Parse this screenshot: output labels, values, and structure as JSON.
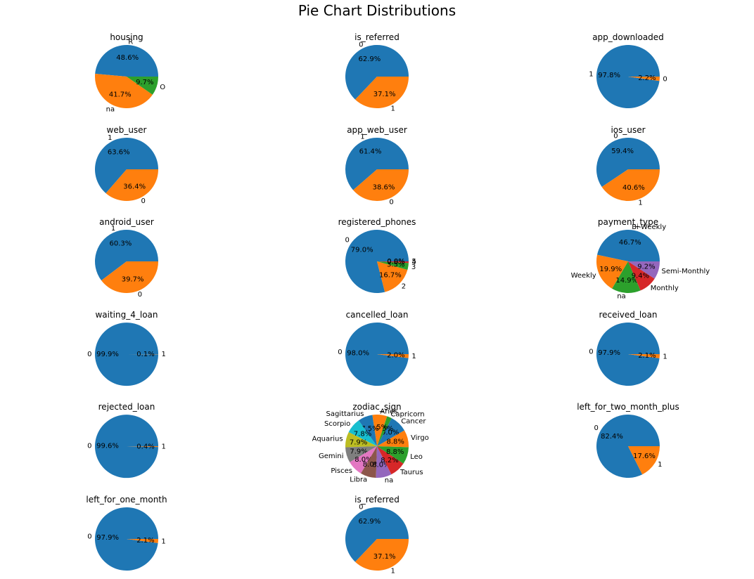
{
  "figure": {
    "title": "Pie Chart Distributions"
  },
  "chart_data": [
    {
      "type": "pie",
      "title": "housing",
      "labels": [
        "R",
        "na",
        "O"
      ],
      "values": [
        48.6,
        41.7,
        9.7
      ],
      "colors": [
        "#1f77b4",
        "#ff7f0e",
        "#2ca02c"
      ],
      "start_angle": 0
    },
    {
      "type": "pie",
      "title": "is_referred",
      "labels": [
        "0",
        "1"
      ],
      "values": [
        62.9,
        37.1
      ],
      "colors": [
        "#1f77b4",
        "#ff7f0e"
      ],
      "start_angle": 0
    },
    {
      "type": "pie",
      "title": "app_downloaded",
      "labels": [
        "1",
        "0"
      ],
      "values": [
        97.8,
        2.2
      ],
      "colors": [
        "#1f77b4",
        "#ff7f0e"
      ],
      "start_angle": 0
    },
    {
      "type": "pie",
      "title": "web_user",
      "labels": [
        "1",
        "0"
      ],
      "values": [
        63.6,
        36.4
      ],
      "colors": [
        "#1f77b4",
        "#ff7f0e"
      ],
      "start_angle": 0
    },
    {
      "type": "pie",
      "title": "app_web_user",
      "labels": [
        "1",
        "0"
      ],
      "values": [
        61.4,
        38.6
      ],
      "colors": [
        "#1f77b4",
        "#ff7f0e"
      ],
      "start_angle": 0
    },
    {
      "type": "pie",
      "title": "ios_user",
      "labels": [
        "0",
        "1"
      ],
      "values": [
        59.4,
        40.6
      ],
      "colors": [
        "#1f77b4",
        "#ff7f0e"
      ],
      "start_angle": 0
    },
    {
      "type": "pie",
      "title": "android_user",
      "labels": [
        "1",
        "0"
      ],
      "values": [
        60.3,
        39.7
      ],
      "colors": [
        "#1f77b4",
        "#ff7f0e"
      ],
      "start_angle": 0
    },
    {
      "type": "pie",
      "title": "registered_phones",
      "labels": [
        "0",
        "2",
        "3",
        "4",
        "5"
      ],
      "values": [
        79.0,
        16.7,
        3.5,
        0.8,
        0.0
      ],
      "colors": [
        "#1f77b4",
        "#ff7f0e",
        "#2ca02c",
        "#d62728",
        "#9467bd"
      ],
      "start_angle": 0
    },
    {
      "type": "pie",
      "title": "payment_type",
      "labels": [
        "Bi-Weekly",
        "Weekly",
        "na",
        "Monthly",
        "Semi-Monthly"
      ],
      "values": [
        46.7,
        19.9,
        14.9,
        9.4,
        9.2
      ],
      "colors": [
        "#1f77b4",
        "#ff7f0e",
        "#2ca02c",
        "#d62728",
        "#9467bd"
      ],
      "start_angle": 0
    },
    {
      "type": "pie",
      "title": "waiting_4_loan",
      "labels": [
        "0",
        "1"
      ],
      "values": [
        99.9,
        0.1
      ],
      "colors": [
        "#1f77b4",
        "#ff7f0e"
      ],
      "start_angle": 0
    },
    {
      "type": "pie",
      "title": "cancelled_loan",
      "labels": [
        "0",
        "1"
      ],
      "values": [
        98.0,
        2.0
      ],
      "colors": [
        "#1f77b4",
        "#ff7f0e"
      ],
      "start_angle": 0
    },
    {
      "type": "pie",
      "title": "received_loan",
      "labels": [
        "0",
        "1"
      ],
      "values": [
        97.9,
        2.1
      ],
      "colors": [
        "#1f77b4",
        "#ff7f0e"
      ],
      "start_angle": 0
    },
    {
      "type": "pie",
      "title": "rejected_loan",
      "labels": [
        "0",
        "1"
      ],
      "values": [
        99.6,
        0.4
      ],
      "colors": [
        "#1f77b4",
        "#ff7f0e"
      ],
      "start_angle": 0
    },
    {
      "type": "pie",
      "title": "zodiac_sign",
      "labels": [
        "Cancer",
        "Capricorn",
        "Aries",
        "Sagittarius",
        "Scorpio",
        "Aquarius",
        "Gemini",
        "Pisces",
        "Libra",
        "na",
        "Taurus",
        "Leo",
        "Virgo"
      ],
      "values": [
        9.0,
        2.5,
        7.5,
        7.5,
        7.8,
        7.9,
        7.9,
        8.0,
        8.0,
        8.0,
        8.2,
        8.8,
        8.8
      ],
      "colors": [
        "#1f77b4",
        "#2ca02c",
        "#ff7f0e",
        "#1f77b4",
        "#17becf",
        "#bcbd22",
        "#7f7f7f",
        "#e377c2",
        "#8c564b",
        "#9467bd",
        "#d62728",
        "#2ca02c",
        "#ff7f0e"
      ],
      "start_angle": 30
    },
    {
      "type": "pie",
      "title": "left_for_two_month_plus",
      "labels": [
        "0",
        "1"
      ],
      "values": [
        82.4,
        17.6
      ],
      "colors": [
        "#1f77b4",
        "#ff7f0e"
      ],
      "start_angle": 0
    },
    {
      "type": "pie",
      "title": "left_for_one_month",
      "labels": [
        "0",
        "1"
      ],
      "values": [
        97.9,
        2.1
      ],
      "colors": [
        "#1f77b4",
        "#ff7f0e"
      ],
      "start_angle": 0
    },
    {
      "type": "pie",
      "title": "is_referred",
      "labels": [
        "0",
        "1"
      ],
      "values": [
        62.9,
        37.1
      ],
      "colors": [
        "#1f77b4",
        "#ff7f0e"
      ],
      "start_angle": 0
    }
  ]
}
